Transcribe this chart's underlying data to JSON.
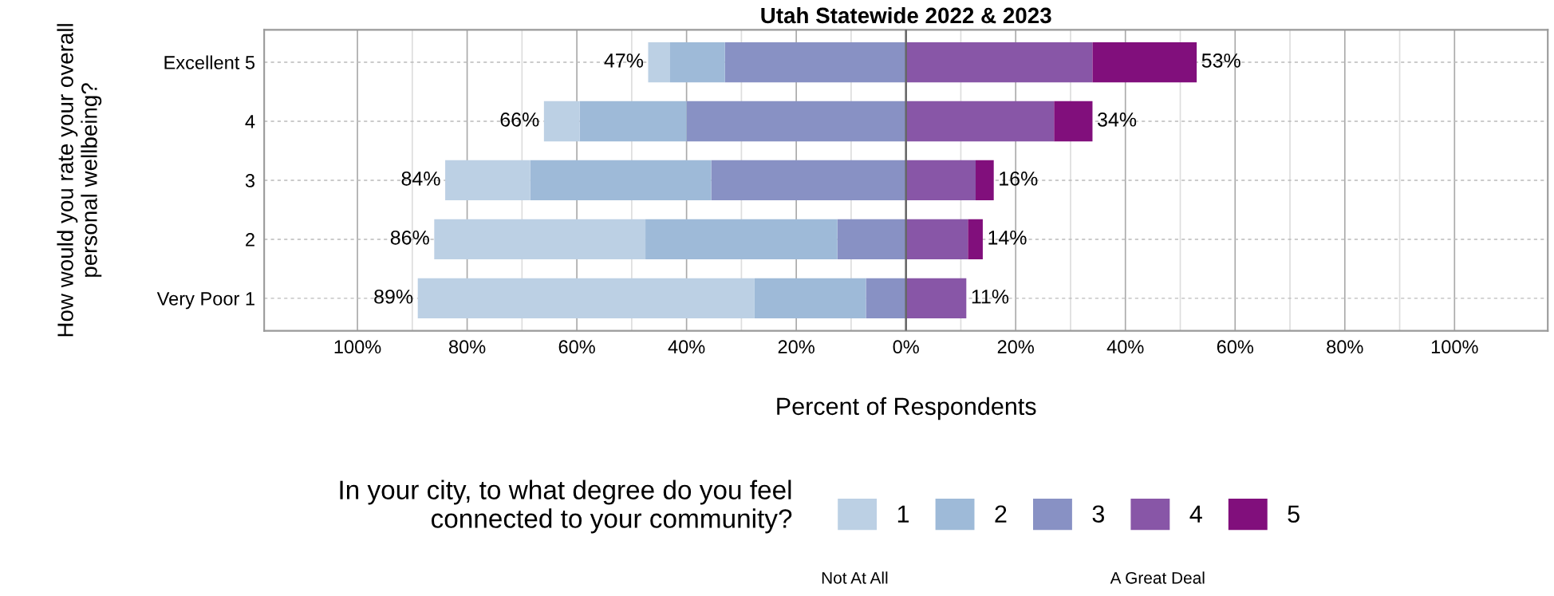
{
  "chart_data": {
    "type": "bar",
    "orientation": "horizontal",
    "stacked": true,
    "title": "Utah Statewide 2022 & 2023",
    "xlabel": "Percent of Respondents",
    "ylabel": "How would you rate your overall personal wellbeing?",
    "legend_title": "In your city, to what degree do you feel connected to your community?",
    "categories": [
      "Excellent 5",
      "4",
      "3",
      "2",
      "Very Poor 1"
    ],
    "series": [
      {
        "name": "1",
        "color": "#bcd0e4",
        "values": [
          -4,
          -6.5,
          -15.5,
          -38.5,
          -61.4
        ]
      },
      {
        "name": "2",
        "color": "#9ebad8",
        "values": [
          -10,
          -19.5,
          -33,
          -35,
          -20.3
        ]
      },
      {
        "name": "3",
        "color": "#8891c4",
        "values": [
          -33,
          -40,
          -35.5,
          -12.5,
          -7.3
        ]
      },
      {
        "name": "4",
        "color": "#8856a7",
        "values": [
          34,
          27,
          12.7,
          11.3,
          11
        ]
      },
      {
        "name": "5",
        "color": "#810f7c",
        "values": [
          19,
          7,
          3.3,
          2.7,
          0
        ]
      }
    ],
    "xlim": [
      -117,
      117
    ],
    "xticks": [
      {
        "value": -100,
        "label": "100%"
      },
      {
        "value": -90,
        "label": null
      },
      {
        "value": -80,
        "label": "80%"
      },
      {
        "value": -70,
        "label": null
      },
      {
        "value": -60,
        "label": "60%"
      },
      {
        "value": -50,
        "label": null
      },
      {
        "value": -40,
        "label": "40%"
      },
      {
        "value": -30,
        "label": null
      },
      {
        "value": -20,
        "label": "20%"
      },
      {
        "value": -10,
        "label": null
      },
      {
        "value": 0,
        "label": "0%"
      },
      {
        "value": 10,
        "label": null
      },
      {
        "value": 20,
        "label": "20%"
      },
      {
        "value": 30,
        "label": null
      },
      {
        "value": 40,
        "label": "40%"
      },
      {
        "value": 50,
        "label": null
      },
      {
        "value": 60,
        "label": "60%"
      },
      {
        "value": 70,
        "label": null
      },
      {
        "value": 80,
        "label": "80%"
      },
      {
        "value": 90,
        "label": null
      },
      {
        "value": 100,
        "label": "100%"
      }
    ],
    "ref_lines": [
      {
        "axis": "x",
        "value": 0,
        "color": "#666666"
      }
    ],
    "grid": true,
    "legend": "bottom",
    "annotations": [
      {
        "text": "47%",
        "x": -47,
        "y": "Excellent 5"
      },
      {
        "text": "53%",
        "x": 53,
        "y": "Excellent 5"
      },
      {
        "text": "66%",
        "x": -66,
        "y": "4"
      },
      {
        "text": "34%",
        "x": 34,
        "y": "4"
      },
      {
        "text": "84%",
        "x": -84,
        "y": "3"
      },
      {
        "text": "16%",
        "x": 16,
        "y": "3"
      },
      {
        "text": "86%",
        "x": -86,
        "y": "2"
      },
      {
        "text": "14%",
        "x": 14,
        "y": "2"
      },
      {
        "text": "89%",
        "x": -89,
        "y": "Very Poor 1"
      },
      {
        "text": "11%",
        "x": 11,
        "y": "Very Poor 1"
      },
      "Not At All",
      "A Great Deal"
    ]
  }
}
